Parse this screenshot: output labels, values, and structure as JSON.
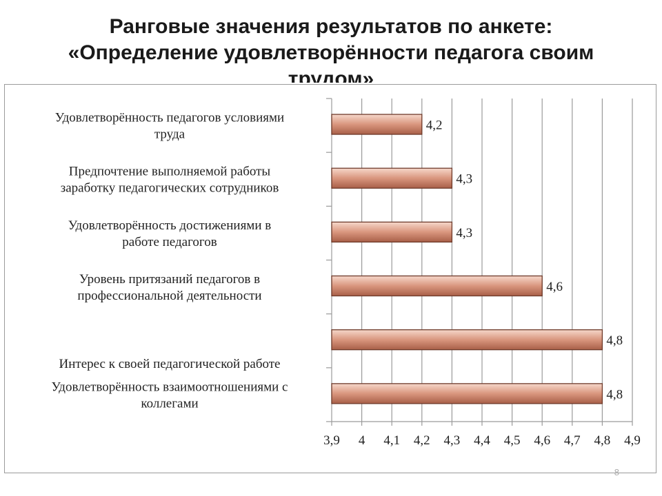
{
  "slide": {
    "title_line1": "Ранговые значения результатов по анкете:",
    "title_line2": "«Определение удовлетворённости педагога своим",
    "title_line3": "трудом»",
    "page_number": "8"
  },
  "chart_data": {
    "type": "bar",
    "orientation": "horizontal",
    "categories": [
      [
        "Удовлетворённость педагогов  условиями",
        "труда"
      ],
      [
        "Предпочтение выполняемой работы",
        "заработку педагогических сотрудников"
      ],
      [
        "Удовлетворённость достижениями в",
        "работе педагогов"
      ],
      [
        "Уровень притязаний педагогов  в",
        "профессиональной деятельности"
      ],
      [
        "Интерес к  своей педагогической  работе"
      ],
      [
        "Удовлетворённость взаимоотношениями с",
        "коллегами"
      ]
    ],
    "values": [
      4.2,
      4.3,
      4.3,
      4.6,
      4.8,
      4.8
    ],
    "data_labels": [
      "4,2",
      "4,3",
      "4,3",
      "4,6",
      "4,8",
      "4,8"
    ],
    "xlim": [
      3.9,
      4.9
    ],
    "x_ticks": [
      "3,9",
      "4",
      "4,1",
      "4,2",
      "4,3",
      "4,4",
      "4,5",
      "4,6",
      "4,7",
      "4,8",
      "4,9"
    ],
    "grid": true,
    "colors": {
      "bar": "#d9967e",
      "bar_edge": "#6e3a2a",
      "grid": "#9a9a9a"
    }
  }
}
